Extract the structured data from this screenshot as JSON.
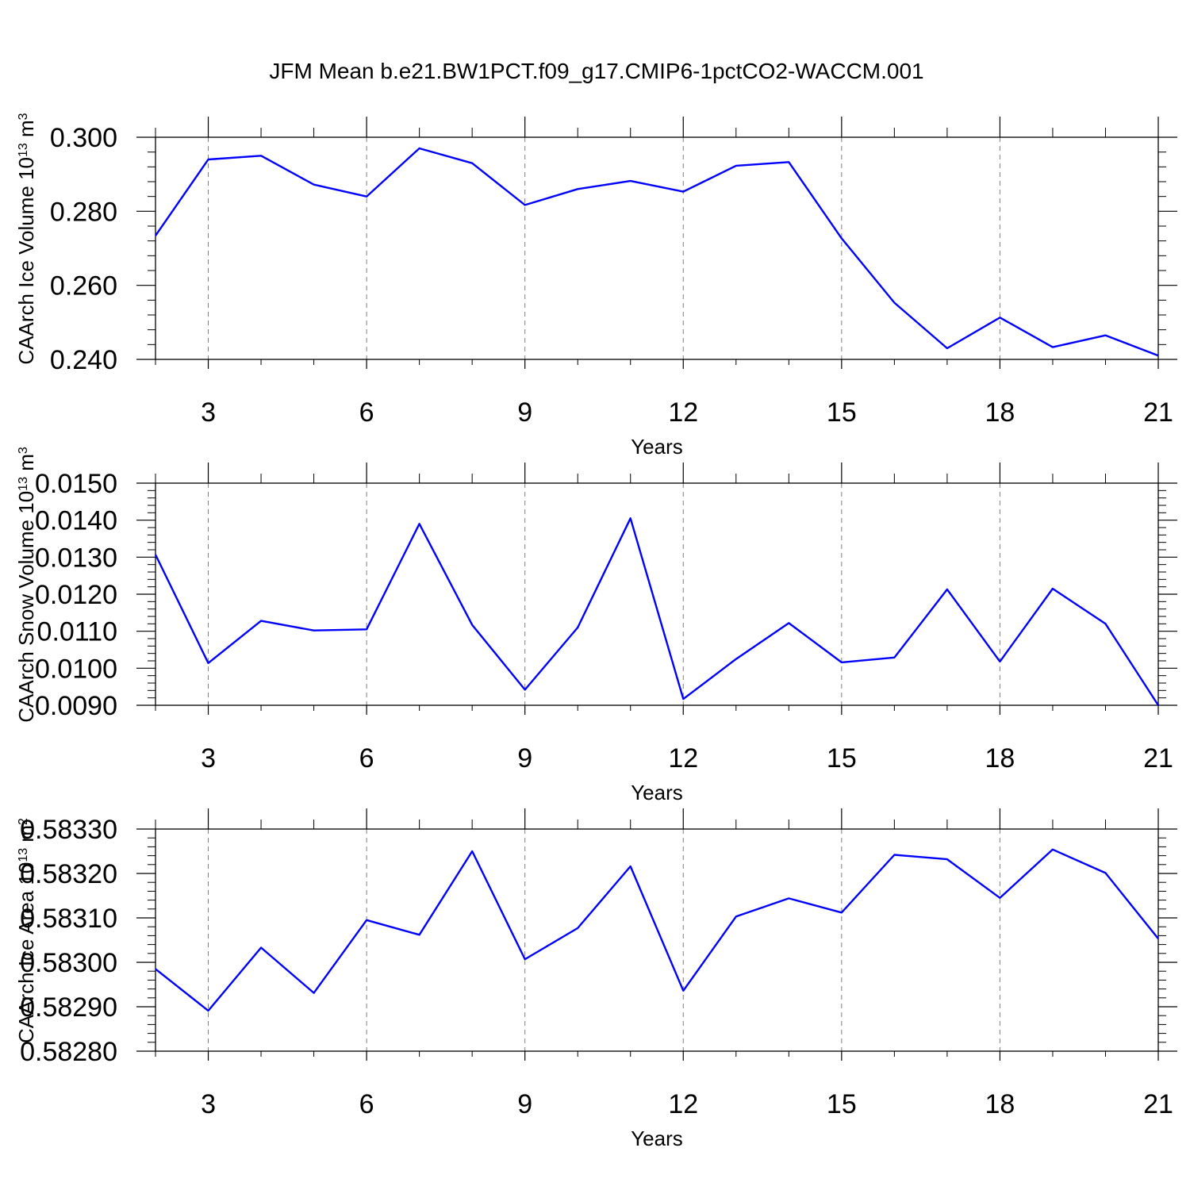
{
  "title": "JFM Mean b.e21.BW1PCT.f09_g17.CMIP6-1pctCO2-WACCM.001",
  "colors": {
    "line": "#0000ff",
    "axis": "#000000",
    "grid": "#7f7f7f"
  },
  "chart_data": [
    {
      "type": "line",
      "xlabel": "Years",
      "ylabel": "CAArch Ice Volume 10",
      "ylabel_exp": "13",
      "ylabel_unit": " m",
      "ylabel_unit_exp": "3",
      "xlim": [
        2,
        21
      ],
      "ylim": [
        0.24,
        0.3
      ],
      "xticks": [
        3,
        6,
        9,
        12,
        15,
        18,
        21
      ],
      "xtick_labels": [
        "3",
        "6",
        "9",
        "12",
        "15",
        "18",
        "21"
      ],
      "yticks": [
        0.24,
        0.26,
        0.28,
        0.3
      ],
      "ytick_labels": [
        "0.240",
        "0.260",
        "0.280",
        "0.300"
      ],
      "ygrid": false,
      "xgrid": "dashed",
      "series": [
        {
          "x": [
            2,
            3,
            4,
            5,
            6,
            7,
            8,
            9,
            10,
            11,
            12,
            13,
            14,
            15,
            16,
            17,
            18,
            19,
            20,
            21
          ],
          "values": [
            0.2734,
            0.294,
            0.295,
            0.2872,
            0.284,
            0.297,
            0.293,
            0.2817,
            0.286,
            0.2882,
            0.2853,
            0.2923,
            0.2933,
            0.2727,
            0.2553,
            0.243,
            0.2513,
            0.2433,
            0.2465,
            0.241
          ]
        }
      ]
    },
    {
      "type": "line",
      "xlabel": "Years",
      "ylabel": "CAArch Snow Volume 10",
      "ylabel_exp": "13",
      "ylabel_unit": " m",
      "ylabel_unit_exp": "3",
      "xlim": [
        2,
        21
      ],
      "ylim": [
        0.009,
        0.015
      ],
      "xticks": [
        3,
        6,
        9,
        12,
        15,
        18,
        21
      ],
      "xtick_labels": [
        "3",
        "6",
        "9",
        "12",
        "15",
        "18",
        "21"
      ],
      "yticks": [
        0.009,
        0.01,
        0.011,
        0.012,
        0.013,
        0.014,
        0.015
      ],
      "ytick_labels": [
        "0.0090",
        "0.0100",
        "0.0110",
        "0.0120",
        "0.0130",
        "0.0140",
        "0.0150"
      ],
      "ygrid": false,
      "xgrid": "dashed",
      "series": [
        {
          "x": [
            2,
            3,
            4,
            5,
            6,
            7,
            8,
            9,
            10,
            11,
            12,
            13,
            14,
            15,
            16,
            17,
            18,
            19,
            20,
            21
          ],
          "values": [
            0.01307,
            0.01014,
            0.01128,
            0.01102,
            0.01105,
            0.0139,
            0.01117,
            0.00942,
            0.0111,
            0.01405,
            0.00917,
            0.01025,
            0.01122,
            0.01016,
            0.01029,
            0.01213,
            0.01018,
            0.01215,
            0.0112,
            0.009
          ]
        }
      ]
    },
    {
      "type": "line",
      "xlabel": "Years",
      "ylabel": "CAArch Ice Area 10",
      "ylabel_exp": "13",
      "ylabel_unit": " m",
      "ylabel_unit_exp": "2",
      "xlim": [
        2,
        21
      ],
      "ylim": [
        0.5828,
        0.5833
      ],
      "xticks": [
        3,
        6,
        9,
        12,
        15,
        18,
        21
      ],
      "xtick_labels": [
        "3",
        "6",
        "9",
        "12",
        "15",
        "18",
        "21"
      ],
      "yticks": [
        0.5828,
        0.5829,
        0.583,
        0.5831,
        0.5832,
        0.5833
      ],
      "ytick_labels": [
        "0.58280",
        "0.58290",
        "0.58300",
        "0.58310",
        "0.58320",
        "0.58330"
      ],
      "ygrid": false,
      "xgrid": "dashed",
      "series": [
        {
          "x": [
            2,
            3,
            4,
            5,
            6,
            7,
            8,
            9,
            10,
            11,
            12,
            13,
            14,
            15,
            16,
            17,
            18,
            19,
            20,
            21
          ],
          "values": [
            0.582985,
            0.582891,
            0.583033,
            0.582931,
            0.583095,
            0.583062,
            0.58325,
            0.583007,
            0.583077,
            0.583216,
            0.582936,
            0.583103,
            0.583144,
            0.583112,
            0.583242,
            0.583232,
            0.583145,
            0.583254,
            0.583201,
            0.583053
          ]
        }
      ]
    }
  ]
}
